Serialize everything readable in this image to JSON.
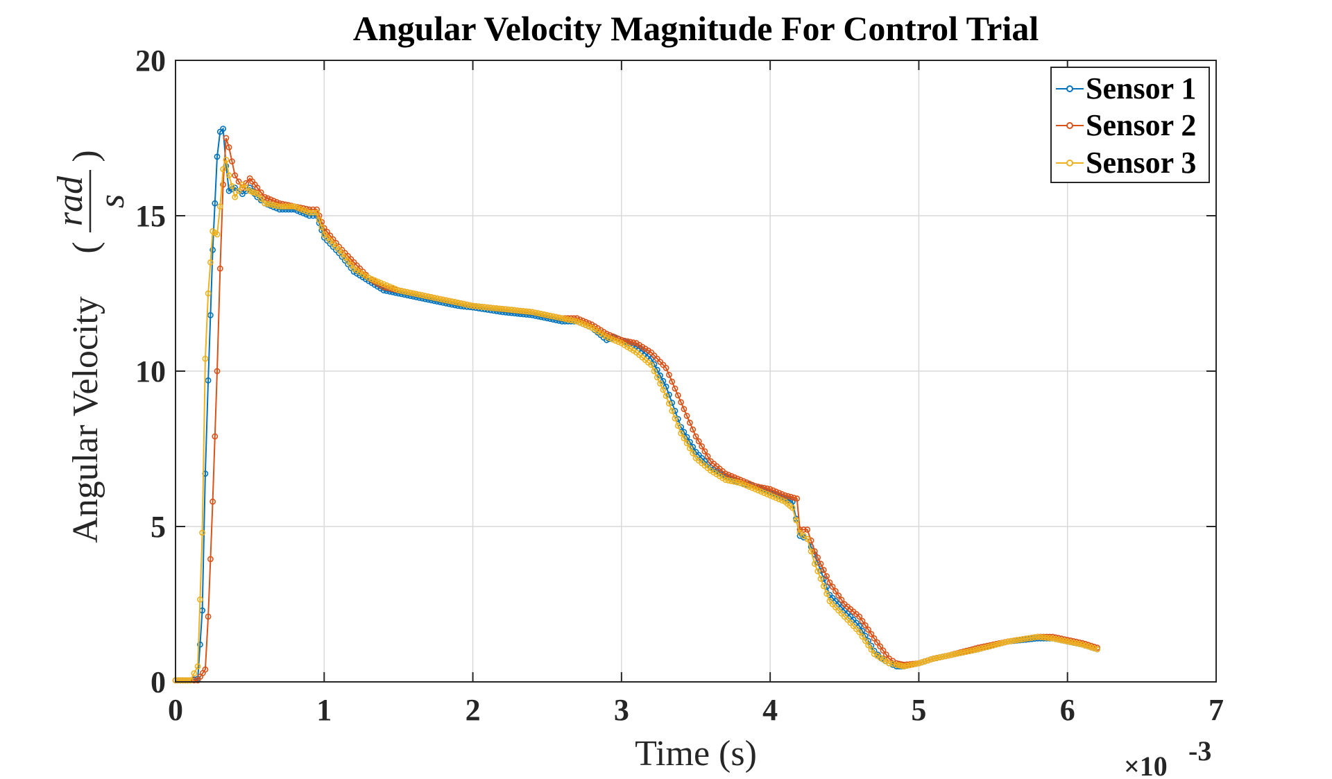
{
  "chart_data": {
    "type": "line",
    "title": "Angular Velocity Magnitude For Control Trial",
    "xlabel": "Time (s)",
    "ylabel": "Angular Velocity",
    "ylabel_unit_num": "rad",
    "ylabel_unit_den": "s",
    "x_multiplier": "×10",
    "x_multiplier_exp": "-3",
    "xlim": [
      0,
      7
    ],
    "ylim": [
      0,
      20
    ],
    "xticks": [
      "0",
      "1",
      "2",
      "3",
      "4",
      "5",
      "6",
      "7"
    ],
    "yticks": [
      "0",
      "5",
      "10",
      "15",
      "20"
    ],
    "grid": true,
    "legend_position": "top-right",
    "series": [
      {
        "name": "Sensor 1",
        "color": "#0072BD",
        "x": [
          0,
          0.05,
          0.1,
          0.15,
          0.18,
          0.2,
          0.22,
          0.25,
          0.28,
          0.3,
          0.32,
          0.34,
          0.36,
          0.4,
          0.45,
          0.5,
          0.55,
          0.6,
          0.7,
          0.8,
          0.9,
          0.95,
          1.0,
          1.1,
          1.2,
          1.3,
          1.4,
          1.5,
          1.6,
          1.7,
          1.8,
          1.9,
          2.0,
          2.2,
          2.4,
          2.5,
          2.6,
          2.7,
          2.8,
          2.9,
          2.95,
          3.0,
          3.1,
          3.2,
          3.3,
          3.4,
          3.5,
          3.6,
          3.7,
          3.8,
          3.9,
          4.0,
          4.1,
          4.15,
          4.2,
          4.25,
          4.3,
          4.4,
          4.5,
          4.6,
          4.7,
          4.75,
          4.8,
          4.85,
          4.9,
          5.0,
          5.1,
          5.2,
          5.4,
          5.6,
          5.8,
          5.9,
          6.0,
          6.1,
          6.2
        ],
        "values": [
          0.05,
          0.05,
          0.05,
          0.1,
          2.3,
          6.7,
          9.7,
          13.9,
          16.9,
          17.7,
          17.8,
          16.6,
          15.8,
          15.9,
          15.7,
          15.9,
          15.6,
          15.4,
          15.2,
          15.2,
          15.0,
          15.0,
          14.3,
          13.8,
          13.2,
          12.9,
          12.6,
          12.5,
          12.4,
          12.3,
          12.2,
          12.1,
          12.05,
          11.9,
          11.8,
          11.7,
          11.6,
          11.6,
          11.4,
          11.0,
          11.1,
          11.0,
          10.8,
          10.4,
          9.5,
          8.2,
          7.4,
          6.9,
          6.6,
          6.4,
          6.3,
          6.1,
          5.9,
          5.8,
          4.7,
          4.6,
          4.1,
          2.8,
          2.3,
          1.8,
          1.0,
          0.75,
          0.6,
          0.5,
          0.5,
          0.6,
          0.75,
          0.85,
          1.05,
          1.3,
          1.4,
          1.4,
          1.3,
          1.2,
          1.05
        ]
      },
      {
        "name": "Sensor 2",
        "color": "#D95319",
        "x": [
          0,
          0.05,
          0.1,
          0.15,
          0.2,
          0.22,
          0.25,
          0.28,
          0.3,
          0.32,
          0.34,
          0.36,
          0.4,
          0.45,
          0.5,
          0.55,
          0.6,
          0.7,
          0.8,
          0.9,
          0.95,
          1.0,
          1.1,
          1.2,
          1.3,
          1.4,
          1.5,
          1.6,
          1.7,
          1.8,
          1.9,
          2.0,
          2.2,
          2.4,
          2.5,
          2.6,
          2.7,
          2.8,
          2.9,
          3.0,
          3.1,
          3.2,
          3.3,
          3.4,
          3.5,
          3.6,
          3.7,
          3.8,
          3.9,
          4.0,
          4.1,
          4.18,
          4.2,
          4.25,
          4.3,
          4.4,
          4.5,
          4.6,
          4.7,
          4.8,
          4.85,
          4.9,
          5.0,
          5.1,
          5.2,
          5.4,
          5.6,
          5.8,
          5.9,
          6.0,
          6.1,
          6.2
        ],
        "values": [
          0.05,
          0.05,
          0.05,
          0.05,
          0.4,
          2.1,
          5.8,
          10.0,
          13.3,
          16.0,
          17.5,
          17.2,
          16.3,
          15.9,
          16.2,
          15.9,
          15.6,
          15.4,
          15.3,
          15.2,
          15.2,
          14.6,
          14.0,
          13.5,
          13.0,
          12.7,
          12.6,
          12.5,
          12.4,
          12.3,
          12.2,
          12.1,
          12.0,
          11.9,
          11.8,
          11.7,
          11.7,
          11.5,
          11.2,
          11.0,
          10.9,
          10.6,
          10.1,
          9.0,
          7.9,
          7.1,
          6.7,
          6.5,
          6.3,
          6.2,
          6.0,
          5.9,
          4.9,
          4.9,
          4.2,
          3.2,
          2.5,
          2.1,
          1.4,
          0.75,
          0.6,
          0.55,
          0.6,
          0.75,
          0.85,
          1.1,
          1.3,
          1.45,
          1.45,
          1.35,
          1.25,
          1.1
        ]
      },
      {
        "name": "Sensor 3",
        "color": "#EDB120",
        "x": [
          0,
          0.05,
          0.1,
          0.15,
          0.18,
          0.2,
          0.22,
          0.25,
          0.28,
          0.3,
          0.32,
          0.34,
          0.36,
          0.4,
          0.45,
          0.5,
          0.55,
          0.6,
          0.7,
          0.8,
          0.9,
          0.95,
          1.0,
          1.1,
          1.2,
          1.3,
          1.4,
          1.5,
          1.6,
          1.7,
          1.8,
          1.9,
          2.0,
          2.2,
          2.4,
          2.5,
          2.6,
          2.7,
          2.8,
          2.9,
          3.0,
          3.1,
          3.2,
          3.3,
          3.4,
          3.5,
          3.6,
          3.7,
          3.8,
          3.9,
          4.0,
          4.1,
          4.15,
          4.2,
          4.25,
          4.3,
          4.4,
          4.5,
          4.6,
          4.7,
          4.8,
          4.85,
          4.9,
          5.0,
          5.1,
          5.2,
          5.4,
          5.6,
          5.8,
          5.9,
          6.0,
          6.1,
          6.2
        ],
        "values": [
          0.05,
          0.05,
          0.05,
          0.5,
          4.8,
          10.4,
          12.5,
          14.5,
          14.4,
          15.3,
          16.5,
          16.8,
          16.3,
          15.6,
          16.0,
          15.8,
          15.7,
          15.4,
          15.3,
          15.3,
          15.1,
          15.1,
          14.4,
          13.9,
          13.3,
          13.0,
          12.8,
          12.6,
          12.5,
          12.4,
          12.3,
          12.2,
          12.1,
          12.0,
          11.9,
          11.8,
          11.7,
          11.6,
          11.4,
          11.1,
          10.9,
          10.6,
          10.2,
          9.2,
          8.0,
          7.2,
          6.8,
          6.5,
          6.4,
          6.2,
          6.0,
          5.8,
          5.6,
          4.8,
          4.6,
          3.8,
          2.6,
          2.1,
          1.6,
          0.9,
          0.6,
          0.55,
          0.5,
          0.6,
          0.75,
          0.85,
          1.05,
          1.3,
          1.45,
          1.4,
          1.3,
          1.2,
          1.05
        ]
      }
    ]
  }
}
